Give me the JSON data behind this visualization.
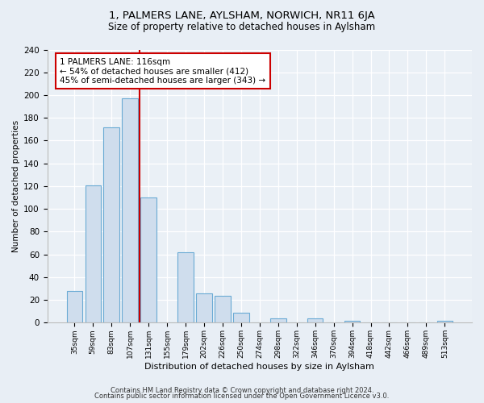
{
  "title": "1, PALMERS LANE, AYLSHAM, NORWICH, NR11 6JA",
  "subtitle": "Size of property relative to detached houses in Aylsham",
  "xlabel": "Distribution of detached houses by size in Aylsham",
  "ylabel": "Number of detached properties",
  "bar_labels": [
    "35sqm",
    "59sqm",
    "83sqm",
    "107sqm",
    "131sqm",
    "155sqm",
    "179sqm",
    "202sqm",
    "226sqm",
    "250sqm",
    "274sqm",
    "298sqm",
    "322sqm",
    "346sqm",
    "370sqm",
    "394sqm",
    "418sqm",
    "442sqm",
    "466sqm",
    "489sqm",
    "513sqm"
  ],
  "bar_values": [
    28,
    121,
    172,
    197,
    110,
    0,
    62,
    26,
    24,
    9,
    0,
    4,
    0,
    4,
    0,
    2,
    0,
    0,
    0,
    0,
    2
  ],
  "bar_color": "#cfdded",
  "bar_edgecolor": "#6aaad4",
  "vline_color": "#cc0000",
  "annotation_text": "1 PALMERS LANE: 116sqm\n← 54% of detached houses are smaller (412)\n45% of semi-detached houses are larger (343) →",
  "annotation_box_edgecolor": "#cc0000",
  "annotation_box_facecolor": "#ffffff",
  "ylim": [
    0,
    240
  ],
  "yticks": [
    0,
    20,
    40,
    60,
    80,
    100,
    120,
    140,
    160,
    180,
    200,
    220,
    240
  ],
  "footer1": "Contains HM Land Registry data © Crown copyright and database right 2024.",
  "footer2": "Contains public sector information licensed under the Open Government Licence v3.0.",
  "bg_color": "#e8eef5",
  "plot_bg_color": "#eaf0f6"
}
